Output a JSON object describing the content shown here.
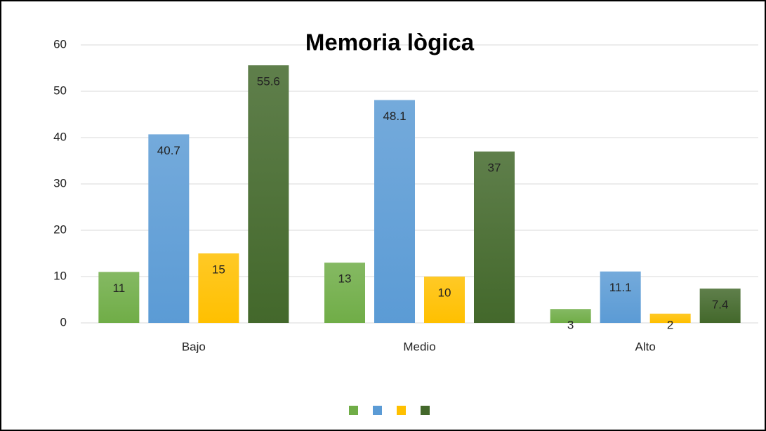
{
  "chart_data": {
    "type": "bar",
    "title": "Memoria lògica",
    "categories": [
      "Bajo",
      "Medio",
      "Alto"
    ],
    "series": [
      {
        "color": "#70ad47",
        "values": [
          11,
          13,
          3
        ]
      },
      {
        "color": "#5b9bd5",
        "values": [
          40.7,
          48.1,
          11.1
        ]
      },
      {
        "color": "#ffc000",
        "values": [
          15,
          10,
          2
        ]
      },
      {
        "color": "#43682b",
        "values": [
          55.6,
          37,
          7.4
        ]
      }
    ],
    "ylim": [
      0,
      60
    ],
    "yticks": [
      0,
      10,
      20,
      30,
      40,
      50,
      60
    ],
    "grid": true,
    "legend": "bottom"
  }
}
